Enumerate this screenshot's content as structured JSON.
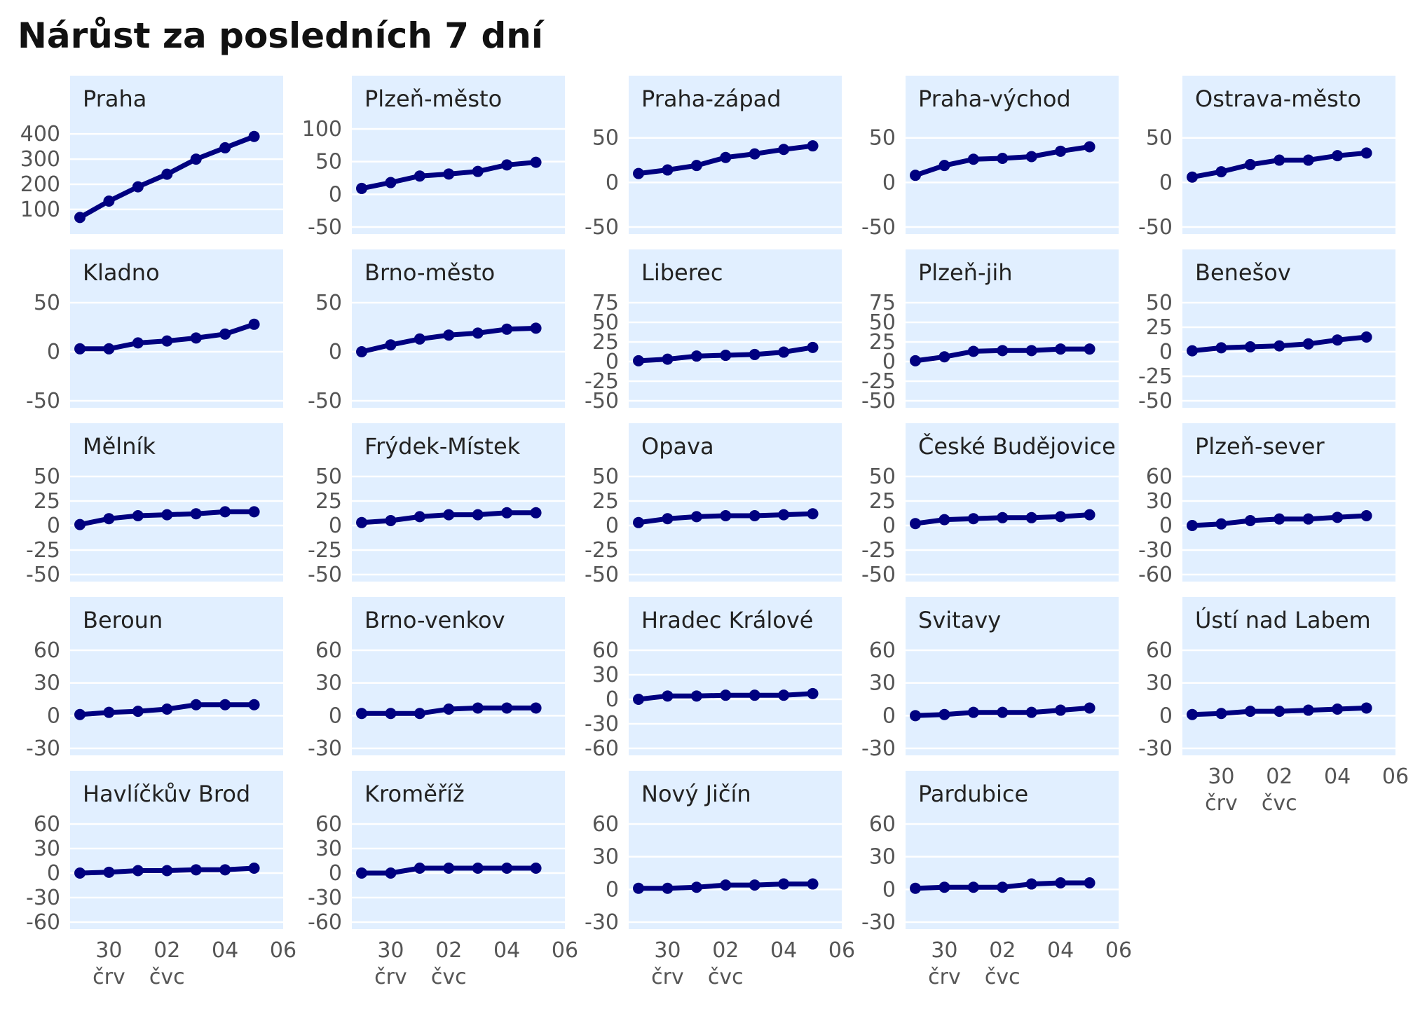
{
  "chart_data": {
    "type": "line",
    "title": "Nárůst za posledních 7 dní",
    "x": [
      "2020-06-29",
      "2020-06-30",
      "2020-07-01",
      "2020-07-02",
      "2020-07-03",
      "2020-07-04",
      "2020-07-05"
    ],
    "x_tick_labels": [
      {
        "x": "2020-06-30",
        "line1": "30",
        "line2": "črv"
      },
      {
        "x": "2020-07-02",
        "line1": "02",
        "line2": "čvc"
      },
      {
        "x": "2020-07-04",
        "line1": "04",
        "line2": ""
      },
      {
        "x": "2020-07-06",
        "line1": "06",
        "line2": ""
      }
    ],
    "grid": true,
    "colors": {
      "line": "#000080",
      "panel": "#e1efff",
      "grid": "#ffffff"
    },
    "panels": [
      {
        "name": "Praha",
        "values": [
          68,
          133,
          190,
          240,
          300,
          345,
          390
        ],
        "ylim": [
          30,
          420
        ],
        "yticks": [
          100,
          200,
          300,
          400
        ]
      },
      {
        "name": "Plzeň-město",
        "values": [
          9,
          18,
          28,
          31,
          35,
          45,
          49
        ],
        "ylim": [
          -50,
          100
        ],
        "yticks": [
          -50,
          0,
          50,
          100
        ]
      },
      {
        "name": "Praha-západ",
        "values": [
          10,
          14,
          19,
          28,
          32,
          37,
          41
        ],
        "ylim": [
          -50,
          60
        ],
        "yticks": [
          -50,
          0,
          50
        ]
      },
      {
        "name": "Praha-východ",
        "values": [
          8,
          19,
          26,
          27,
          29,
          35,
          40
        ],
        "ylim": [
          -50,
          60
        ],
        "yticks": [
          -50,
          0,
          50
        ]
      },
      {
        "name": "Ostrava-město",
        "values": [
          6,
          12,
          20,
          25,
          25,
          30,
          33
        ],
        "ylim": [
          -50,
          60
        ],
        "yticks": [
          -50,
          0,
          50
        ]
      },
      {
        "name": "Kladno",
        "values": [
          3,
          3,
          9,
          11,
          14,
          18,
          28
        ],
        "ylim": [
          -50,
          50
        ],
        "yticks": [
          -50,
          0,
          50
        ]
      },
      {
        "name": "Brno-město",
        "values": [
          0,
          7,
          13,
          17,
          19,
          23,
          24
        ],
        "ylim": [
          -50,
          50
        ],
        "yticks": [
          -50,
          0,
          50
        ]
      },
      {
        "name": "Liberec",
        "values": [
          1,
          3,
          7,
          8,
          9,
          12,
          18
        ],
        "ylim": [
          -50,
          75
        ],
        "yticks": [
          -50,
          -25,
          0,
          25,
          50,
          75
        ]
      },
      {
        "name": "Plzeň-jih",
        "values": [
          1,
          6,
          13,
          14,
          14,
          16,
          16
        ],
        "ylim": [
          -50,
          75
        ],
        "yticks": [
          -50,
          -25,
          0,
          25,
          50,
          75
        ]
      },
      {
        "name": "Benešov",
        "values": [
          1,
          4,
          5,
          6,
          8,
          12,
          15
        ],
        "ylim": [
          -50,
          50
        ],
        "yticks": [
          -50,
          -25,
          0,
          25,
          50
        ]
      },
      {
        "name": "Mělník",
        "values": [
          1,
          7,
          10,
          11,
          12,
          14,
          14
        ],
        "ylim": [
          -50,
          50
        ],
        "yticks": [
          -50,
          -25,
          0,
          25,
          50
        ]
      },
      {
        "name": "Frýdek-Místek",
        "values": [
          3,
          5,
          9,
          11,
          11,
          13,
          13
        ],
        "ylim": [
          -50,
          50
        ],
        "yticks": [
          -50,
          -25,
          0,
          25,
          50
        ]
      },
      {
        "name": "Opava",
        "values": [
          3,
          7,
          9,
          10,
          10,
          11,
          12
        ],
        "ylim": [
          -50,
          50
        ],
        "yticks": [
          -50,
          -25,
          0,
          25,
          50
        ]
      },
      {
        "name": "České Budějovice",
        "values": [
          2,
          6,
          7,
          8,
          8,
          9,
          11
        ],
        "ylim": [
          -50,
          50
        ],
        "yticks": [
          -50,
          -25,
          0,
          25,
          50
        ]
      },
      {
        "name": "Plzeň-sever",
        "values": [
          0,
          2,
          6,
          8,
          8,
          10,
          12
        ],
        "ylim": [
          -60,
          60
        ],
        "yticks": [
          -60,
          -30,
          0,
          30,
          60
        ]
      },
      {
        "name": "Beroun",
        "values": [
          1,
          3,
          4,
          6,
          10,
          10,
          10
        ],
        "ylim": [
          -30,
          60
        ],
        "yticks": [
          -30,
          0,
          30,
          60
        ]
      },
      {
        "name": "Brno-venkov",
        "values": [
          2,
          2,
          2,
          6,
          7,
          7,
          7
        ],
        "ylim": [
          -30,
          60
        ],
        "yticks": [
          -30,
          0,
          30,
          60
        ]
      },
      {
        "name": "Hradec Králové",
        "values": [
          0,
          4,
          4,
          5,
          5,
          5,
          7
        ],
        "ylim": [
          -60,
          60
        ],
        "yticks": [
          -60,
          -30,
          0,
          30,
          60
        ]
      },
      {
        "name": "Svitavy",
        "values": [
          0,
          1,
          3,
          3,
          3,
          5,
          7
        ],
        "ylim": [
          -30,
          60
        ],
        "yticks": [
          -30,
          0,
          30,
          60
        ]
      },
      {
        "name": "Ústí nad Labem",
        "values": [
          1,
          2,
          4,
          4,
          5,
          6,
          7
        ],
        "ylim": [
          -30,
          60
        ],
        "yticks": [
          -30,
          0,
          30,
          60
        ]
      },
      {
        "name": "Havlíčkův Brod",
        "values": [
          0,
          1,
          3,
          3,
          4,
          4,
          6
        ],
        "ylim": [
          -60,
          60
        ],
        "yticks": [
          -60,
          -30,
          0,
          30,
          60
        ]
      },
      {
        "name": "Kroměříž",
        "values": [
          0,
          0,
          6,
          6,
          6,
          6,
          6
        ],
        "ylim": [
          -60,
          60
        ],
        "yticks": [
          -60,
          -30,
          0,
          30,
          60
        ]
      },
      {
        "name": "Nový Jičín",
        "values": [
          1,
          1,
          2,
          4,
          4,
          5,
          5
        ],
        "ylim": [
          -30,
          60
        ],
        "yticks": [
          -30,
          0,
          30,
          60
        ]
      },
      {
        "name": "Pardubice",
        "values": [
          1,
          2,
          2,
          2,
          5,
          6,
          6
        ],
        "ylim": [
          -30,
          60
        ],
        "yticks": [
          -30,
          0,
          30,
          60
        ]
      }
    ]
  }
}
